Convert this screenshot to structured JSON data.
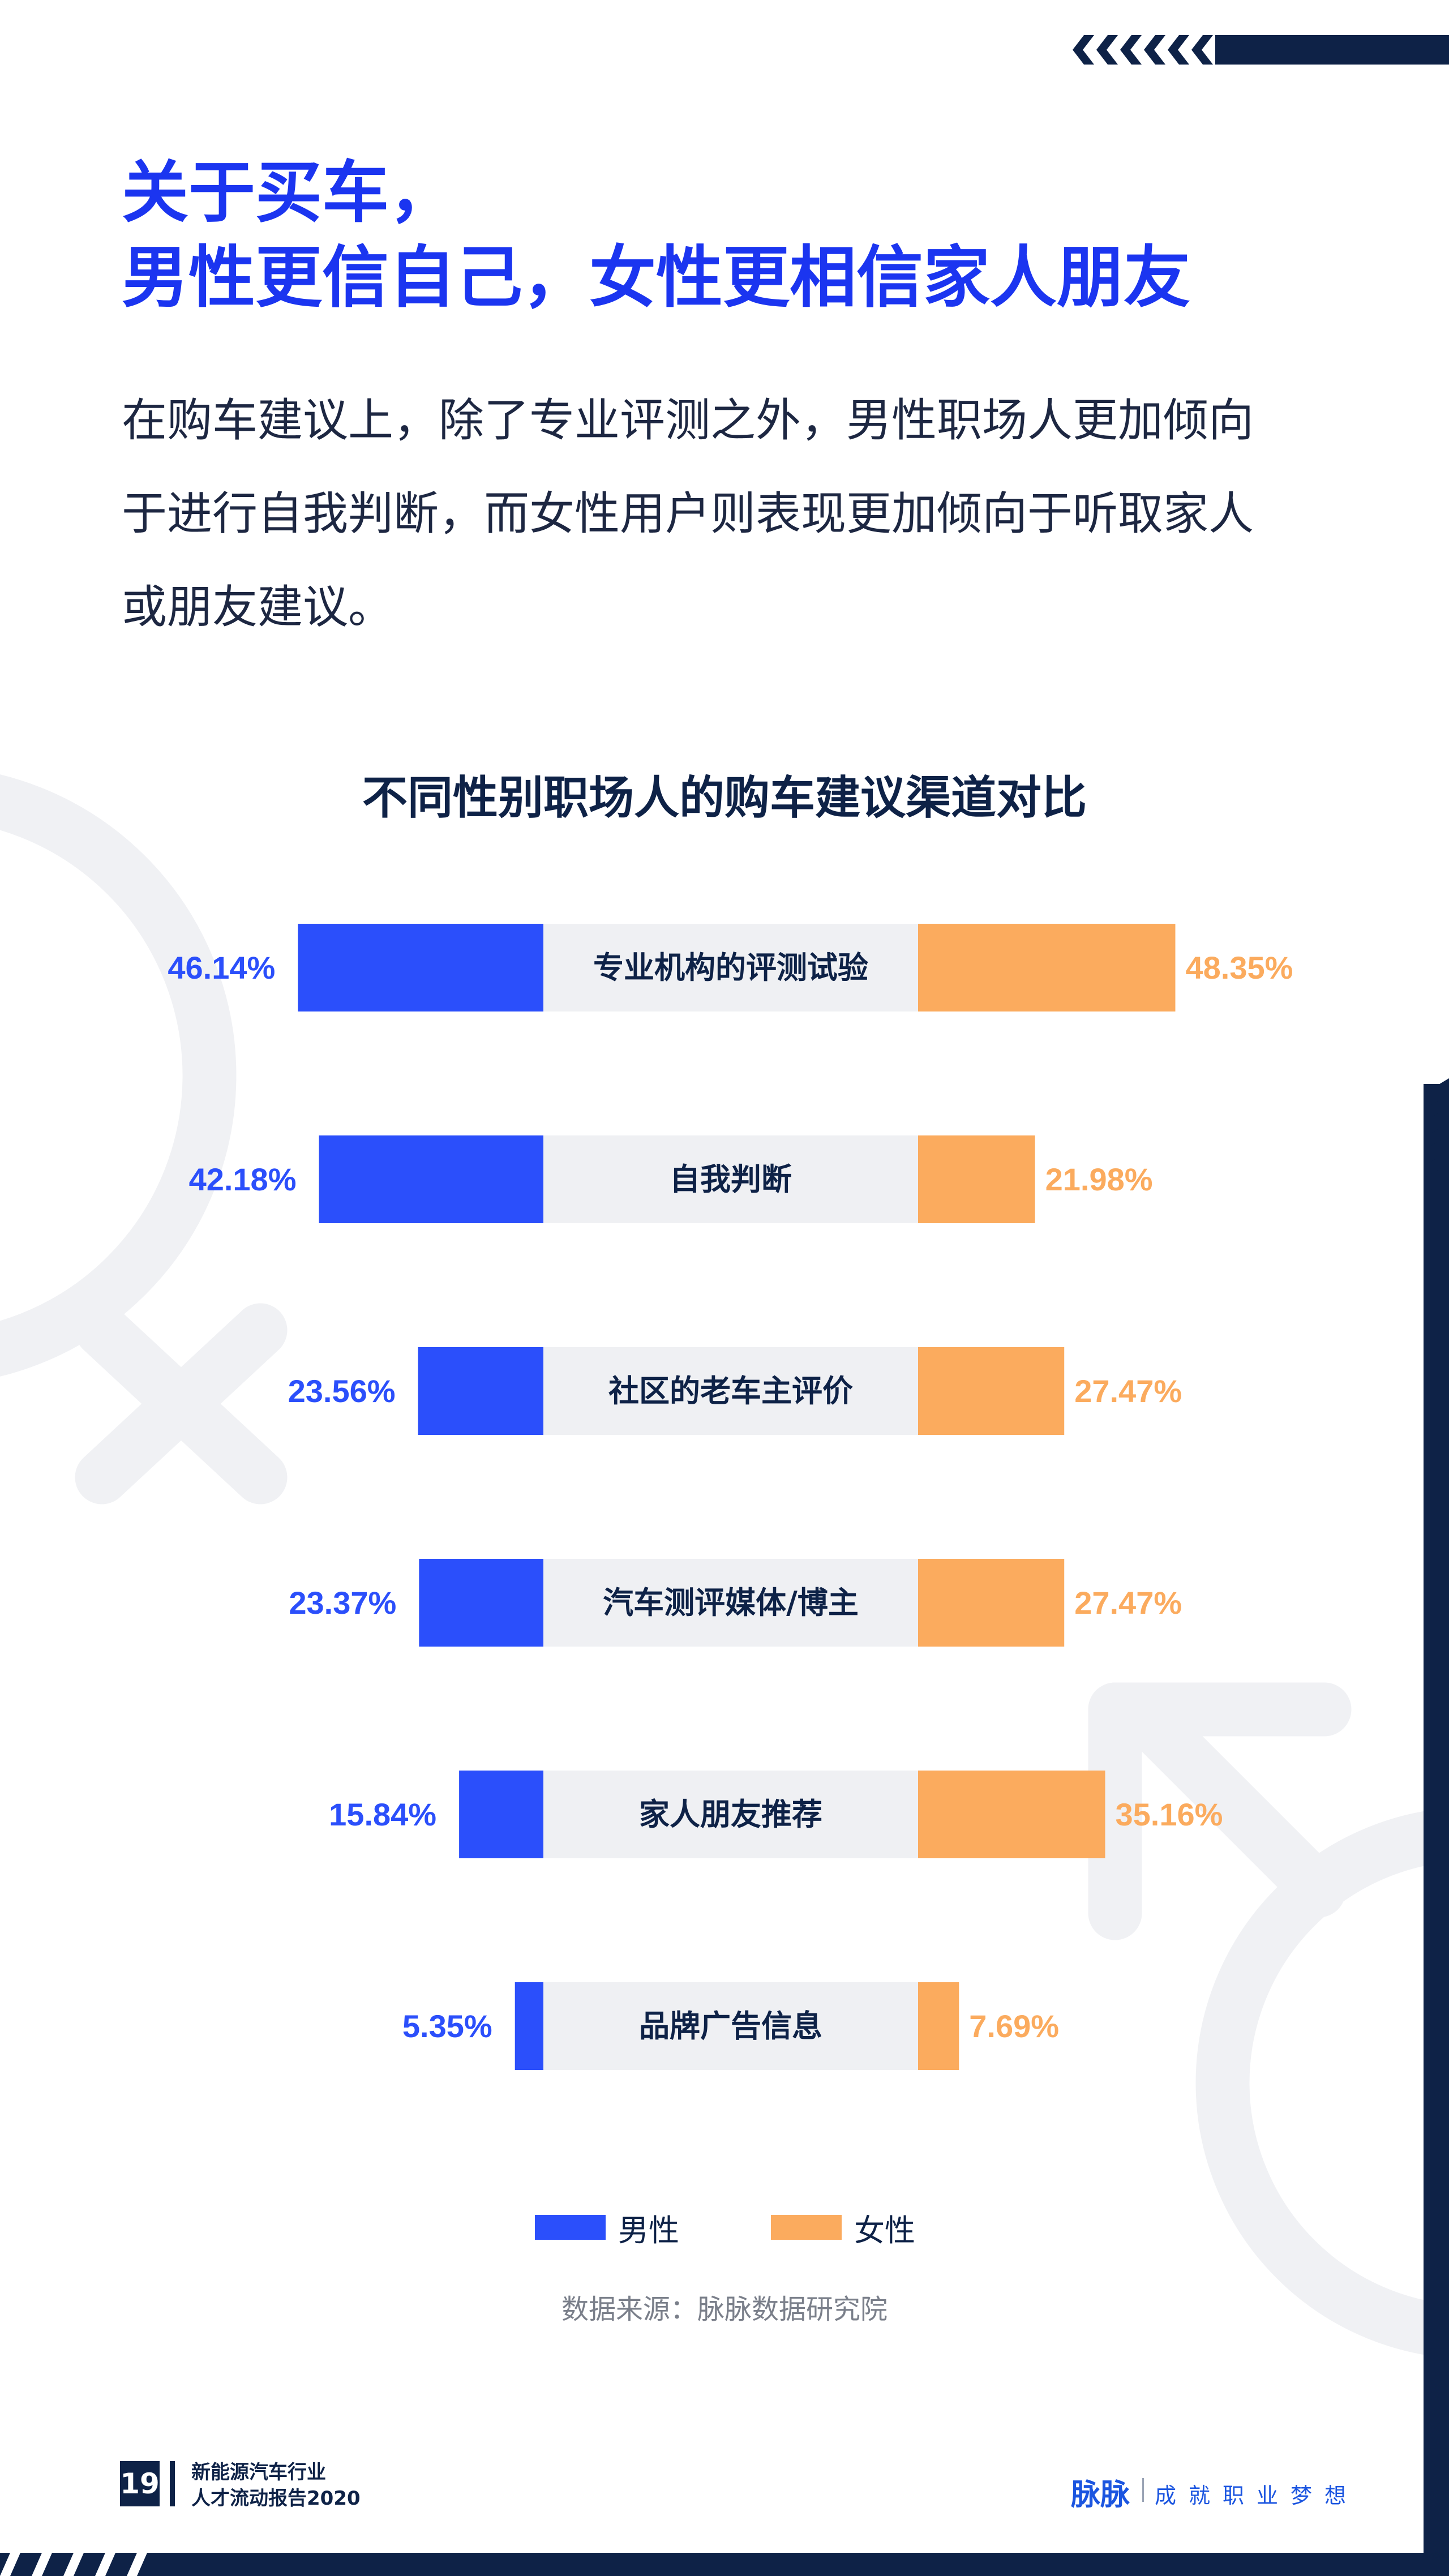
{
  "header": {
    "title_line1": "关于买车，",
    "title_line2": "男性更信自己，女性更相信家人朋友",
    "body_line1": "在购车建议上，除了专业评测之外，男性职场人更加倾向",
    "body_line2": "于进行自我判断，而女性用户则表现更加倾向于听取家人",
    "body_line3": "或朋友建议。"
  },
  "colors": {
    "male": "#2b4ffb",
    "female": "#fbab5e",
    "center_band": "#eff0f3",
    "navy": "#0e2247",
    "title_blue": "#1b35f0"
  },
  "chart_data": {
    "type": "bar",
    "title": "不同性别职场人的购车建议渠道对比",
    "categories": [
      "专业机构的评测试验",
      "自我判断",
      "社区的老车主评价",
      "汽车测评媒体/博主",
      "家人朋友推荐",
      "品牌广告信息"
    ],
    "series": [
      {
        "name": "男性",
        "values": [
          46.14,
          42.18,
          23.56,
          23.37,
          15.84,
          5.35
        ],
        "labels": [
          "46.14%",
          "42.18%",
          "23.56%",
          "23.37%",
          "15.84%",
          "5.35%"
        ]
      },
      {
        "name": "女性",
        "values": [
          48.35,
          21.98,
          27.47,
          27.47,
          35.16,
          7.69
        ],
        "labels": [
          "48.35%",
          "21.98%",
          "27.47%",
          "27.47%",
          "35.16%",
          "7.69%"
        ]
      }
    ],
    "orientation": "horizontal-butterfly",
    "unit": "%",
    "legend": "bottom-center",
    "grid": false
  },
  "legend": {
    "male": "男性",
    "female": "女性"
  },
  "source": "数据来源：脉脉数据研究院",
  "footer": {
    "page_number": "19",
    "report_line1": "新能源汽车行业",
    "report_line2": "人才流动报告2020",
    "brand": "脉脉",
    "slogan": "成就职业梦想"
  }
}
